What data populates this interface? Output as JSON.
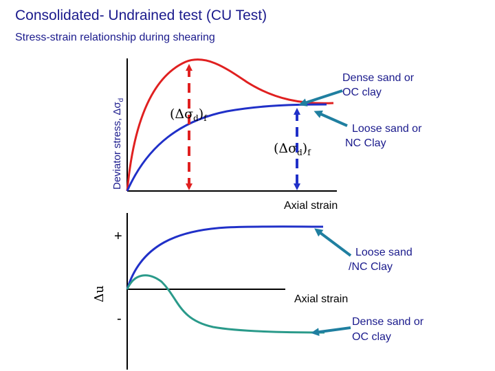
{
  "title": "Consolidated- Undrained test (CU Test)",
  "subtitle": "Stress-strain relationship during shearing",
  "top_plot": {
    "y_axis_label": "Deviator stress, Δσ",
    "y_axis_label_subscript": "d",
    "x_axis_label": "Axial strain",
    "dense_label_line1": "Dense sand or",
    "dense_label_line2": "OC clay",
    "loose_label_line1": "Loose sand or",
    "loose_label_line2": "NC Clay",
    "failure_symbol": "(Δσ",
    "failure_symbol_sub_d": "d",
    "failure_symbol_close": ")",
    "failure_symbol_sub_f": "f"
  },
  "bottom_plot": {
    "y_axis_label": "Δu",
    "plus_label": "+",
    "minus_label": "-",
    "x_axis_label": "Axial strain",
    "loose_label_line1": "Loose sand",
    "loose_label_line2": "/NC Clay",
    "dense_label_line1": "Dense sand or",
    "dense_label_line2": "OC clay"
  },
  "colors": {
    "title": "#1a1a8c",
    "dense_curve": "#e02020",
    "loose_curve": "#2030c8",
    "teal_curve": "#2a9a8a",
    "arrow": "#1f7fa0"
  }
}
